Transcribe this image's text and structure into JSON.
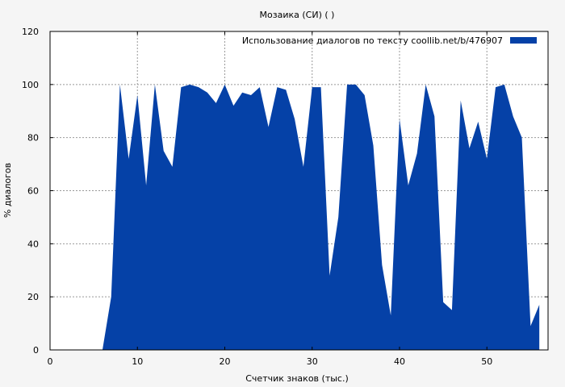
{
  "chart_data": {
    "type": "area",
    "title": "Мозаика (СИ) ( )",
    "xlabel": "Счетчик знаков (тыс.)",
    "ylabel": "% диалогов",
    "xlim": [
      0,
      57
    ],
    "ylim": [
      0,
      120
    ],
    "xticks": [
      0,
      10,
      20,
      30,
      40,
      50
    ],
    "yticks": [
      0,
      20,
      40,
      60,
      80,
      100,
      120
    ],
    "grid": true,
    "legend_position": "top-right",
    "series": [
      {
        "name": "Использование диалогов по тексту  coollib.net/b/476907",
        "color": "#0541a7",
        "x": [
          6,
          7,
          8,
          9,
          10,
          11,
          12,
          13,
          14,
          15,
          16,
          17,
          18,
          19,
          20,
          21,
          22,
          23,
          24,
          25,
          26,
          27,
          28,
          29,
          30,
          31,
          32,
          33,
          34,
          35,
          36,
          37,
          38,
          39,
          40,
          41,
          42,
          43,
          44,
          45,
          46,
          47,
          48,
          49,
          50,
          51,
          52,
          53,
          54,
          55,
          56
        ],
        "y": [
          0,
          20,
          100,
          72,
          96,
          62,
          100,
          75,
          69,
          99,
          100,
          99,
          97,
          93,
          100,
          92,
          97,
          96,
          99,
          84,
          99,
          98,
          87,
          69,
          99,
          99,
          28,
          50,
          100,
          100,
          96,
          77,
          32,
          13,
          87,
          62,
          74,
          100,
          88,
          18,
          15,
          94,
          76,
          86,
          72,
          99,
          100,
          88,
          80,
          9,
          17
        ]
      }
    ]
  }
}
